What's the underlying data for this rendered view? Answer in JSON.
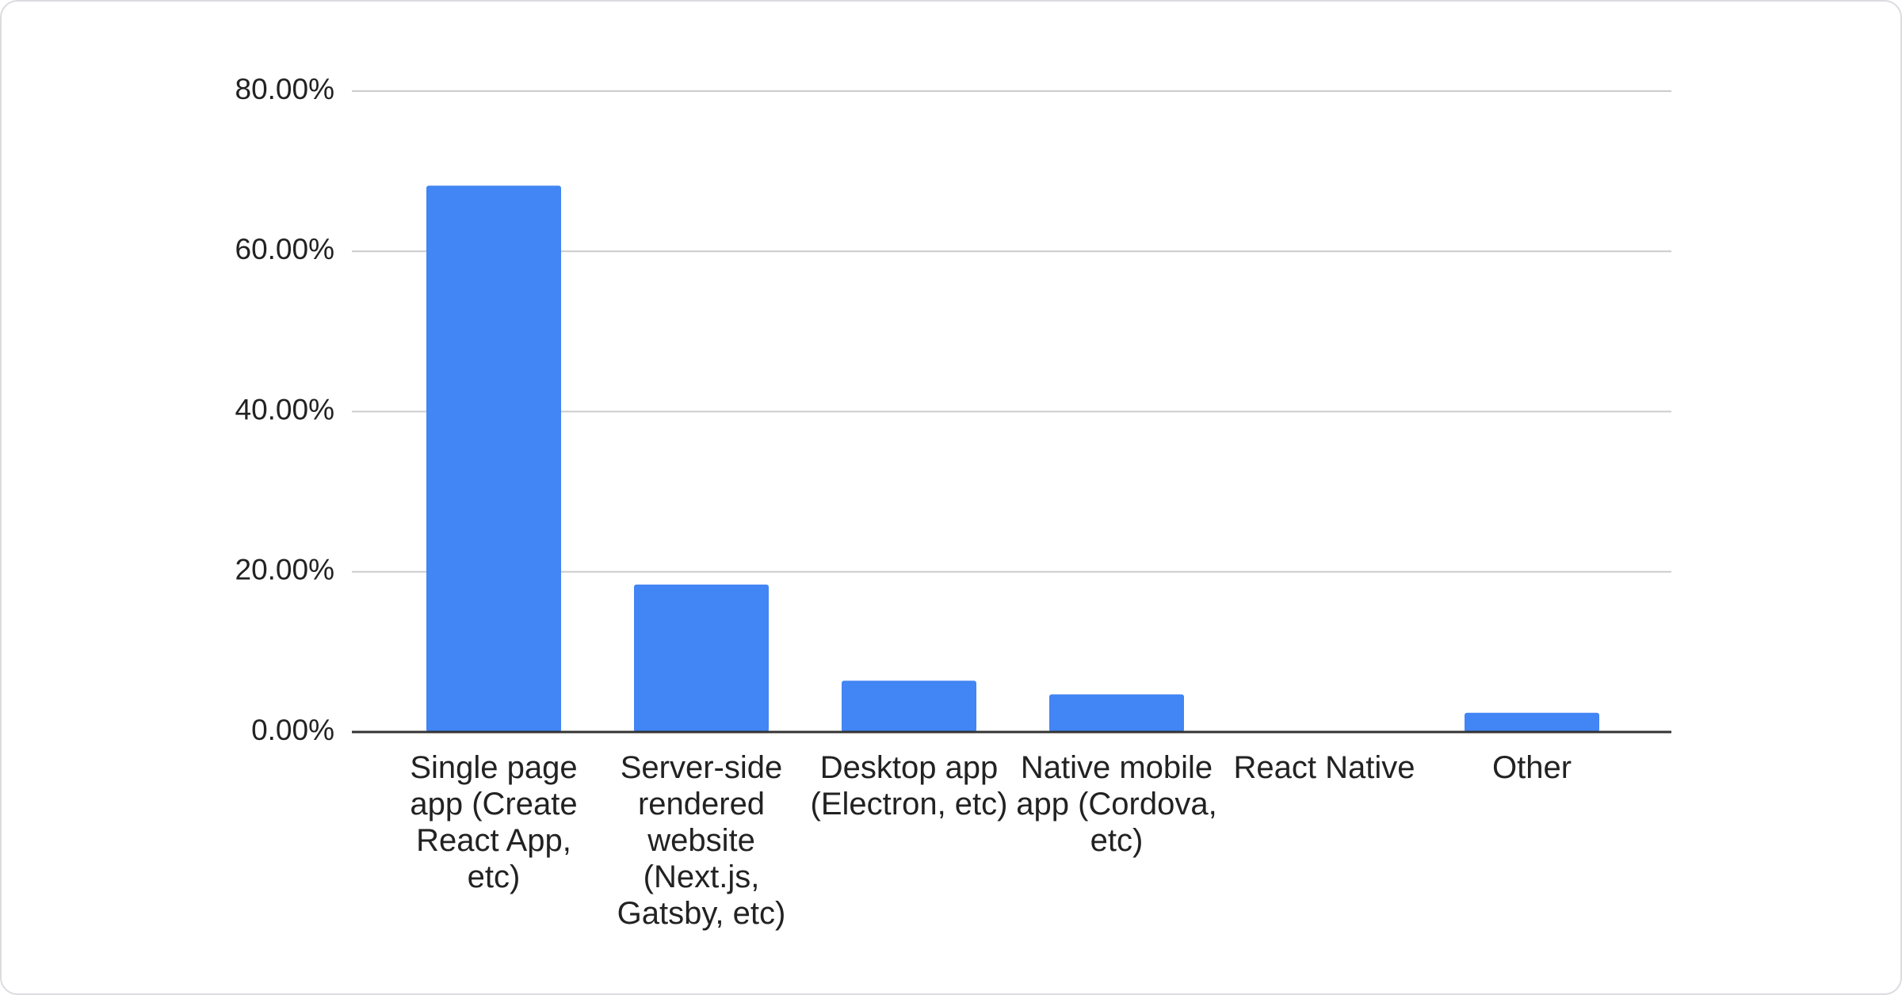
{
  "chart_data": {
    "type": "bar",
    "categories": [
      "Single page app (Create React App, etc)",
      "Server-side rendered website (Next.js, Gatsby, etc)",
      "Desktop app (Electron, etc)",
      "Native mobile app (Cordova, etc)",
      "React Native",
      "Other"
    ],
    "values": [
      68.2,
      18.4,
      6.4,
      4.7,
      0,
      2.4
    ],
    "color": "#4285f4",
    "ylim": [
      0,
      80
    ],
    "yticks": [
      {
        "value": 0,
        "label": "0.00%"
      },
      {
        "value": 20,
        "label": "20.00%"
      },
      {
        "value": 40,
        "label": "40.00%"
      },
      {
        "value": 60,
        "label": "60.00%"
      },
      {
        "value": 80,
        "label": "80.00%"
      }
    ],
    "grid": true
  }
}
